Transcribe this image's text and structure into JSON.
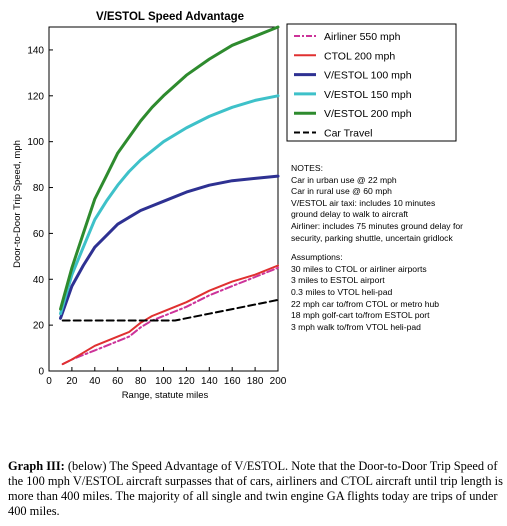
{
  "chart_data": {
    "type": "line",
    "title": "V/ESTOL Speed Advantage",
    "xlabel": "Range, statute miles",
    "ylabel": "Door-to-Door Trip Speed, mph",
    "xlim": [
      0,
      200
    ],
    "ylim": [
      0,
      150
    ],
    "xticks": [
      "0",
      "20",
      "40",
      "60",
      "80",
      "100",
      "120",
      "140",
      "160",
      "180",
      "200"
    ],
    "yticks": [
      "0",
      "20",
      "40",
      "60",
      "80",
      "100",
      "120",
      "140"
    ],
    "grid": false,
    "legend_position": "top-right",
    "series": [
      {
        "name": "Airliner 550 mph",
        "color": "#cc3399",
        "dash": "dash-dot",
        "x": [
          12,
          20,
          30,
          40,
          50,
          60,
          70,
          80,
          90,
          100,
          120,
          140,
          160,
          180,
          200
        ],
        "y": [
          3,
          5,
          7,
          9,
          11,
          13,
          15,
          19,
          22,
          24,
          28,
          33,
          37,
          41,
          45
        ]
      },
      {
        "name": "CTOL 200 mph",
        "color": "#e03030",
        "dash": "solid",
        "x": [
          12,
          20,
          30,
          40,
          50,
          60,
          70,
          80,
          90,
          100,
          120,
          140,
          160,
          180,
          200
        ],
        "y": [
          3,
          5,
          8,
          11,
          13,
          15,
          17,
          21,
          24,
          26,
          30,
          35,
          39,
          42,
          46
        ]
      },
      {
        "name": "V/ESTOL 100 mph",
        "color": "#2e3192",
        "dash": "solid",
        "x": [
          10,
          20,
          30,
          40,
          50,
          60,
          70,
          80,
          90,
          100,
          120,
          140,
          160,
          180,
          200
        ],
        "y": [
          23,
          37,
          46,
          54,
          59,
          64,
          67,
          70,
          72,
          74,
          78,
          81,
          83,
          84,
          85
        ]
      },
      {
        "name": "V/ESTOL 150 mph",
        "color": "#3ec1c9",
        "dash": "solid",
        "x": [
          10,
          20,
          30,
          40,
          50,
          60,
          70,
          80,
          90,
          100,
          120,
          140,
          160,
          180,
          200
        ],
        "y": [
          25,
          42,
          54,
          66,
          74,
          81,
          87,
          92,
          96,
          100,
          106,
          111,
          115,
          118,
          120
        ]
      },
      {
        "name": "V/ESTOL 200 mph",
        "color": "#2e8b2e",
        "dash": "solid",
        "x": [
          10,
          20,
          30,
          40,
          50,
          60,
          70,
          80,
          90,
          100,
          120,
          140,
          160,
          180,
          200
        ],
        "y": [
          27,
          45,
          60,
          75,
          85,
          95,
          102,
          109,
          115,
          120,
          129,
          136,
          142,
          146,
          150
        ]
      },
      {
        "name": "Car Travel",
        "color": "#000000",
        "dash": "dashed",
        "x": [
          12,
          40,
          80,
          110,
          140,
          170,
          200
        ],
        "y": [
          22,
          22,
          22,
          22,
          25,
          28,
          31
        ]
      }
    ]
  },
  "notes": [
    "NOTES:",
    "Car in urban use @  22 mph",
    "Car in rural use @ 60 mph",
    "V/ESTOL air taxi: includes 10 minutes",
    "ground delay to walk to aircraft",
    "Airliner: includes 75 minutes ground delay for",
    "security, parking shuttle, uncertain gridlock"
  ],
  "assumptions": [
    "Assumptions:",
    "30 miles to CTOL or airliner airports",
    "3 miles to ESTOL airport",
    "0.3 miles to VTOL heli-pad",
    "22 mph car to/from CTOL or metro hub",
    "18 mph golf-cart to/from ESTOL port",
    "3 mph walk to/from VTOL heli-pad"
  ],
  "caption": {
    "label": "Graph III:",
    "text": " (below) The Speed Advantage of V/ESTOL. Note that the Door-to-Door Trip Speed of the 100 mph V/ESTOL aircraft surpasses that of cars, airliners and CTOL aircraft until trip length is more than 400 miles. The majority of all single and twin engine GA flights today are trips of under 400 miles."
  }
}
